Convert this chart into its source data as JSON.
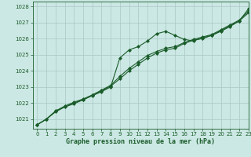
{
  "xlabel": "Graphe pression niveau de la mer (hPa)",
  "xlim": [
    -0.5,
    23
  ],
  "ylim": [
    1020.4,
    1028.3
  ],
  "yticks": [
    1021,
    1022,
    1023,
    1024,
    1025,
    1026,
    1027,
    1028
  ],
  "xticks": [
    0,
    1,
    2,
    3,
    4,
    5,
    6,
    7,
    8,
    9,
    10,
    11,
    12,
    13,
    14,
    15,
    16,
    17,
    18,
    19,
    20,
    21,
    22,
    23
  ],
  "background_color": "#cce8e4",
  "grid_color": "#a8c8c4",
  "line_color": "#1a5c2a",
  "line1_x": [
    0,
    1,
    2,
    3,
    4,
    5,
    6,
    7,
    8,
    9,
    10,
    11,
    12,
    13,
    14,
    15,
    16,
    17,
    18,
    19,
    20,
    21,
    22,
    23
  ],
  "line1_y": [
    1020.65,
    1021.0,
    1021.5,
    1021.8,
    1022.0,
    1022.2,
    1022.5,
    1022.75,
    1023.05,
    1023.5,
    1024.0,
    1024.4,
    1024.8,
    1025.1,
    1025.3,
    1025.4,
    1025.7,
    1025.9,
    1026.0,
    1026.2,
    1026.5,
    1026.8,
    1027.1,
    1027.6
  ],
  "line2_x": [
    0,
    1,
    2,
    3,
    4,
    5,
    6,
    7,
    8,
    9,
    10,
    11,
    12,
    13,
    14,
    15,
    16,
    17,
    18,
    19,
    20,
    21,
    22,
    23
  ],
  "line2_y": [
    1020.65,
    1021.0,
    1021.45,
    1021.75,
    1021.95,
    1022.2,
    1022.45,
    1022.7,
    1023.0,
    1024.8,
    1025.3,
    1025.5,
    1025.85,
    1026.3,
    1026.45,
    1026.2,
    1025.95,
    1025.85,
    1026.05,
    1026.2,
    1026.45,
    1026.75,
    1027.1,
    1027.85
  ],
  "line3_x": [
    0,
    1,
    2,
    3,
    4,
    5,
    6,
    7,
    8,
    9,
    10,
    11,
    12,
    13,
    14,
    15,
    16,
    17,
    18,
    19,
    20,
    21,
    22,
    23
  ],
  "line3_y": [
    1020.65,
    1021.0,
    1021.5,
    1021.8,
    1022.05,
    1022.25,
    1022.5,
    1022.8,
    1023.1,
    1023.65,
    1024.15,
    1024.55,
    1024.95,
    1025.2,
    1025.4,
    1025.5,
    1025.75,
    1025.95,
    1026.1,
    1026.25,
    1026.55,
    1026.85,
    1027.15,
    1027.7
  ],
  "marker": "D",
  "marker_size": 2.0,
  "linewidth": 0.8,
  "tick_fontsize": 5.0,
  "label_fontsize": 6.0,
  "label_fontweight": "bold"
}
